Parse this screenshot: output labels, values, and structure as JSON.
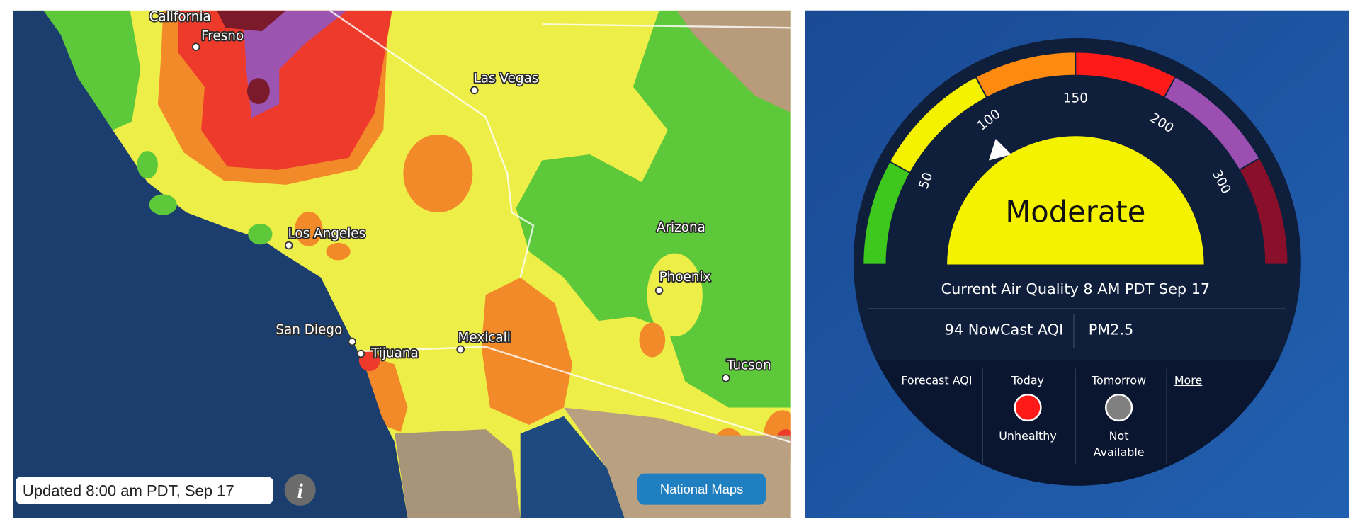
{
  "map": {
    "places": [
      "California",
      "Fresno",
      "Las Vegas",
      "Los Angeles",
      "Arizona",
      "Phoenix",
      "San Diego",
      "Tijuana",
      "Mexicali",
      "Tucson"
    ],
    "updated": "Updated 8:00 am PDT, Sep 17",
    "info": "i",
    "button": "National Maps"
  },
  "gauge": {
    "ticks": [
      "50",
      "100",
      "150",
      "200",
      "300"
    ],
    "category": "Moderate",
    "current": "Current Air Quality 8 AM PDT Sep 17",
    "nowcast": "94 NowCast AQI",
    "pollutant": "PM2.5",
    "forecast": {
      "label": "Forecast AQI",
      "today": "Today",
      "today_status": "Unhealthy",
      "tomorrow": "Tomorrow",
      "tomorrow_status": [
        "Not",
        "Available"
      ],
      "more": "More"
    }
  }
}
